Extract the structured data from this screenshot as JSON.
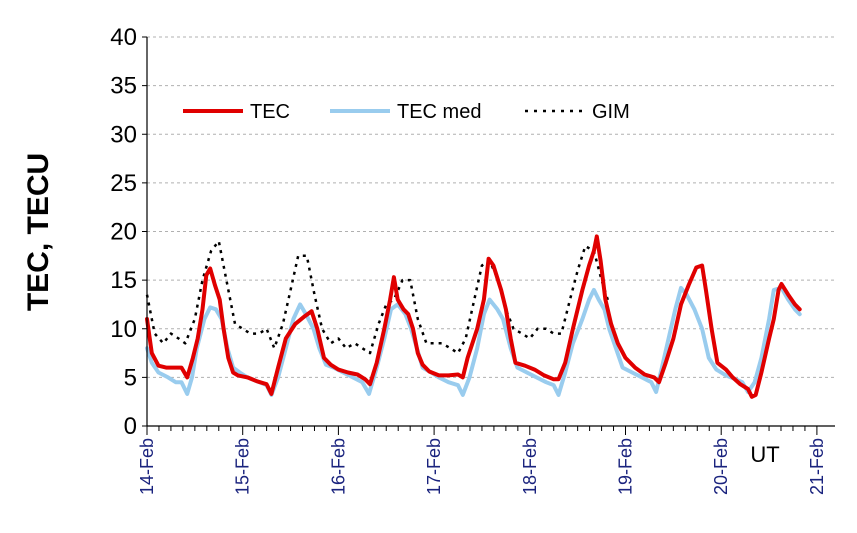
{
  "chart_data": {
    "type": "line",
    "ylabel": "TEC, TECU",
    "xlabel": "UT",
    "ylim": [
      0,
      40
    ],
    "yticks": [
      "0",
      "5",
      "10",
      "15",
      "20",
      "25",
      "30",
      "35",
      "40"
    ],
    "xlim": [
      0,
      7
    ],
    "xticks": [
      "14-Feb",
      "15-Feb",
      "16-Feb",
      "17-Feb",
      "18-Feb",
      "19-Feb",
      "20-Feb",
      "21-Feb"
    ],
    "grid": true,
    "legend_position": "top-left",
    "series": [
      {
        "name": "TEC",
        "color": "#e00000",
        "style": "solid",
        "points": [
          [
            0.0,
            11.0
          ],
          [
            0.05,
            7.5
          ],
          [
            0.12,
            6.2
          ],
          [
            0.2,
            6.0
          ],
          [
            0.3,
            6.0
          ],
          [
            0.36,
            6.0
          ],
          [
            0.42,
            5.0
          ],
          [
            0.48,
            7.0
          ],
          [
            0.53,
            9.0
          ],
          [
            0.58,
            12.0
          ],
          [
            0.62,
            15.5
          ],
          [
            0.66,
            16.2
          ],
          [
            0.71,
            14.5
          ],
          [
            0.76,
            13.0
          ],
          [
            0.8,
            10.0
          ],
          [
            0.85,
            7.0
          ],
          [
            0.9,
            5.5
          ],
          [
            0.95,
            5.2
          ],
          [
            1.05,
            5.0
          ],
          [
            1.15,
            4.6
          ],
          [
            1.25,
            4.3
          ],
          [
            1.3,
            3.3
          ],
          [
            1.37,
            6.0
          ],
          [
            1.45,
            9.0
          ],
          [
            1.55,
            10.5
          ],
          [
            1.65,
            11.3
          ],
          [
            1.72,
            11.8
          ],
          [
            1.78,
            10.0
          ],
          [
            1.85,
            7.0
          ],
          [
            1.92,
            6.3
          ],
          [
            2.0,
            5.8
          ],
          [
            2.1,
            5.5
          ],
          [
            2.2,
            5.3
          ],
          [
            2.28,
            4.8
          ],
          [
            2.33,
            4.3
          ],
          [
            2.4,
            6.5
          ],
          [
            2.48,
            10.0
          ],
          [
            2.54,
            13.0
          ],
          [
            2.58,
            15.3
          ],
          [
            2.62,
            13.0
          ],
          [
            2.68,
            12.0
          ],
          [
            2.73,
            11.5
          ],
          [
            2.78,
            10.0
          ],
          [
            2.83,
            7.5
          ],
          [
            2.88,
            6.3
          ],
          [
            2.95,
            5.6
          ],
          [
            3.05,
            5.2
          ],
          [
            3.15,
            5.2
          ],
          [
            3.25,
            5.3
          ],
          [
            3.3,
            5.0
          ],
          [
            3.35,
            7.0
          ],
          [
            3.45,
            10.0
          ],
          [
            3.52,
            13.0
          ],
          [
            3.57,
            17.2
          ],
          [
            3.62,
            16.5
          ],
          [
            3.7,
            14.0
          ],
          [
            3.75,
            12.0
          ],
          [
            3.8,
            9.0
          ],
          [
            3.85,
            6.5
          ],
          [
            3.95,
            6.2
          ],
          [
            4.05,
            5.8
          ],
          [
            4.15,
            5.2
          ],
          [
            4.25,
            4.8
          ],
          [
            4.3,
            4.8
          ],
          [
            4.37,
            6.5
          ],
          [
            4.45,
            10.0
          ],
          [
            4.55,
            14.0
          ],
          [
            4.62,
            16.5
          ],
          [
            4.67,
            18.0
          ],
          [
            4.7,
            19.5
          ],
          [
            4.74,
            17.0
          ],
          [
            4.79,
            13.0
          ],
          [
            4.85,
            10.5
          ],
          [
            4.92,
            8.5
          ],
          [
            5.0,
            7.0
          ],
          [
            5.1,
            6.0
          ],
          [
            5.2,
            5.3
          ],
          [
            5.3,
            5.0
          ],
          [
            5.35,
            4.5
          ],
          [
            5.42,
            6.5
          ],
          [
            5.5,
            9.0
          ],
          [
            5.58,
            12.5
          ],
          [
            5.66,
            14.5
          ],
          [
            5.74,
            16.3
          ],
          [
            5.8,
            16.5
          ],
          [
            5.84,
            14.0
          ],
          [
            5.9,
            10.0
          ],
          [
            5.96,
            6.5
          ],
          [
            6.05,
            5.8
          ],
          [
            6.12,
            5.0
          ],
          [
            6.2,
            4.3
          ],
          [
            6.28,
            3.8
          ],
          [
            6.32,
            3.0
          ],
          [
            6.36,
            3.2
          ],
          [
            6.42,
            5.5
          ],
          [
            6.5,
            9.0
          ],
          [
            6.55,
            11.0
          ],
          [
            6.6,
            14.0
          ],
          [
            6.63,
            14.6
          ],
          [
            6.7,
            13.5
          ],
          [
            6.77,
            12.5
          ],
          [
            6.82,
            12.0
          ]
        ]
      },
      {
        "name": "TEC med",
        "color": "#99ccee",
        "style": "solid",
        "points": [
          [
            0.0,
            8.0
          ],
          [
            0.05,
            6.5
          ],
          [
            0.12,
            5.5
          ],
          [
            0.22,
            5.0
          ],
          [
            0.3,
            4.5
          ],
          [
            0.36,
            4.5
          ],
          [
            0.42,
            3.3
          ],
          [
            0.47,
            5.0
          ],
          [
            0.52,
            8.0
          ],
          [
            0.6,
            11.0
          ],
          [
            0.66,
            12.2
          ],
          [
            0.72,
            12.0
          ],
          [
            0.78,
            11.0
          ],
          [
            0.84,
            8.0
          ],
          [
            0.9,
            6.0
          ],
          [
            0.97,
            5.5
          ],
          [
            1.05,
            5.0
          ],
          [
            1.15,
            4.6
          ],
          [
            1.25,
            4.2
          ],
          [
            1.3,
            3.2
          ],
          [
            1.37,
            5.0
          ],
          [
            1.45,
            8.0
          ],
          [
            1.53,
            11.0
          ],
          [
            1.6,
            12.5
          ],
          [
            1.66,
            11.5
          ],
          [
            1.74,
            10.0
          ],
          [
            1.8,
            8.0
          ],
          [
            1.87,
            6.3
          ],
          [
            1.95,
            6.0
          ],
          [
            2.05,
            5.5
          ],
          [
            2.15,
            5.0
          ],
          [
            2.25,
            4.5
          ],
          [
            2.32,
            3.3
          ],
          [
            2.4,
            6.0
          ],
          [
            2.48,
            9.0
          ],
          [
            2.55,
            12.0
          ],
          [
            2.62,
            12.5
          ],
          [
            2.7,
            11.5
          ],
          [
            2.76,
            10.0
          ],
          [
            2.82,
            8.0
          ],
          [
            2.88,
            6.0
          ],
          [
            2.97,
            5.5
          ],
          [
            3.05,
            5.0
          ],
          [
            3.15,
            4.5
          ],
          [
            3.25,
            4.2
          ],
          [
            3.3,
            3.2
          ],
          [
            3.37,
            5.0
          ],
          [
            3.45,
            8.0
          ],
          [
            3.52,
            11.5
          ],
          [
            3.58,
            13.0
          ],
          [
            3.66,
            12.0
          ],
          [
            3.72,
            11.0
          ],
          [
            3.8,
            8.0
          ],
          [
            3.87,
            6.0
          ],
          [
            3.97,
            5.5
          ],
          [
            4.07,
            5.0
          ],
          [
            4.17,
            4.5
          ],
          [
            4.25,
            4.2
          ],
          [
            4.3,
            3.2
          ],
          [
            4.37,
            5.5
          ],
          [
            4.45,
            8.5
          ],
          [
            4.55,
            11.0
          ],
          [
            4.62,
            13.0
          ],
          [
            4.67,
            14.0
          ],
          [
            4.72,
            13.0
          ],
          [
            4.78,
            12.0
          ],
          [
            4.83,
            10.0
          ],
          [
            4.9,
            8.0
          ],
          [
            4.97,
            6.0
          ],
          [
            5.07,
            5.5
          ],
          [
            5.17,
            5.0
          ],
          [
            5.27,
            4.5
          ],
          [
            5.32,
            3.5
          ],
          [
            5.38,
            6.0
          ],
          [
            5.45,
            9.0
          ],
          [
            5.52,
            12.0
          ],
          [
            5.58,
            14.2
          ],
          [
            5.64,
            13.5
          ],
          [
            5.72,
            12.0
          ],
          [
            5.8,
            10.0
          ],
          [
            5.87,
            7.0
          ],
          [
            5.95,
            5.8
          ],
          [
            6.05,
            5.2
          ],
          [
            6.15,
            4.8
          ],
          [
            6.22,
            4.5
          ],
          [
            6.28,
            3.5
          ],
          [
            6.35,
            4.5
          ],
          [
            6.42,
            7.0
          ],
          [
            6.5,
            11.0
          ],
          [
            6.55,
            14.0
          ],
          [
            6.63,
            14.2
          ],
          [
            6.7,
            13.0
          ],
          [
            6.77,
            12.0
          ],
          [
            6.82,
            11.5
          ]
        ]
      },
      {
        "name": "GIM",
        "color": "#000000",
        "style": "dotted",
        "points": [
          [
            0.0,
            13.5
          ],
          [
            0.08,
            9.5
          ],
          [
            0.17,
            8.5
          ],
          [
            0.25,
            9.5
          ],
          [
            0.33,
            9.0
          ],
          [
            0.4,
            8.5
          ],
          [
            0.5,
            11.0
          ],
          [
            0.58,
            15.0
          ],
          [
            0.67,
            18.0
          ],
          [
            0.75,
            19.0
          ],
          [
            0.83,
            15.0
          ],
          [
            0.92,
            10.5
          ],
          [
            1.0,
            10.0
          ],
          [
            1.08,
            9.5
          ],
          [
            1.17,
            9.5
          ],
          [
            1.25,
            10.0
          ],
          [
            1.33,
            8.0
          ],
          [
            1.42,
            10.5
          ],
          [
            1.5,
            14.0
          ],
          [
            1.58,
            17.5
          ],
          [
            1.67,
            17.5
          ],
          [
            1.75,
            13.5
          ],
          [
            1.83,
            10.0
          ],
          [
            1.92,
            8.5
          ],
          [
            2.0,
            9.0
          ],
          [
            2.08,
            8.0
          ],
          [
            2.17,
            8.5
          ],
          [
            2.25,
            8.0
          ],
          [
            2.33,
            7.5
          ],
          [
            2.42,
            10.5
          ],
          [
            2.5,
            12.5
          ],
          [
            2.58,
            13.0
          ],
          [
            2.67,
            15.0
          ],
          [
            2.75,
            15.0
          ],
          [
            2.83,
            11.0
          ],
          [
            2.92,
            8.5
          ],
          [
            3.0,
            8.5
          ],
          [
            3.08,
            8.5
          ],
          [
            3.17,
            8.0
          ],
          [
            3.25,
            7.5
          ],
          [
            3.33,
            9.0
          ],
          [
            3.42,
            13.0
          ],
          [
            3.5,
            16.5
          ],
          [
            3.58,
            17.0
          ],
          [
            3.67,
            15.0
          ],
          [
            3.75,
            12.0
          ],
          [
            3.83,
            10.0
          ],
          [
            3.92,
            9.5
          ],
          [
            4.0,
            9.0
          ],
          [
            4.08,
            10.0
          ],
          [
            4.17,
            10.0
          ],
          [
            4.25,
            9.5
          ],
          [
            4.33,
            9.5
          ],
          [
            4.42,
            13.0
          ],
          [
            4.5,
            16.0
          ],
          [
            4.58,
            18.5
          ],
          [
            4.67,
            18.0
          ],
          [
            4.75,
            15.0
          ],
          [
            4.83,
            12.5
          ]
        ]
      }
    ]
  }
}
